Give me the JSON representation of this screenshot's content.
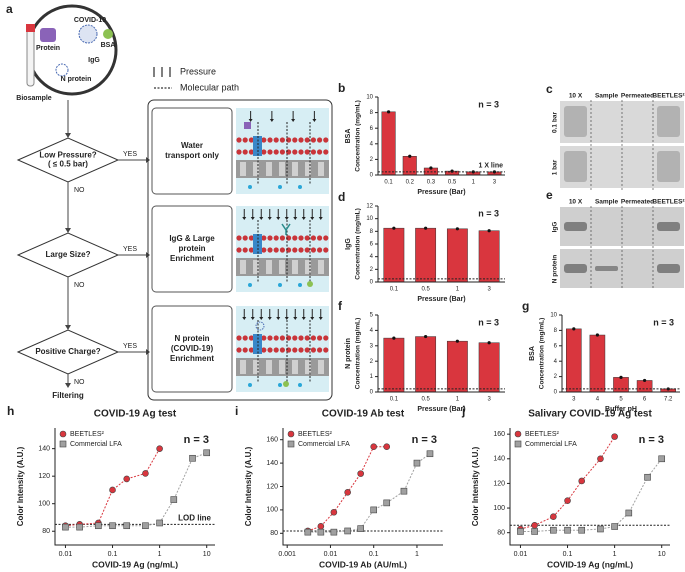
{
  "diagram": {
    "panel": "a",
    "biosample": "Biosample",
    "protein": "Protein",
    "covid": "COVID-19",
    "bsa": "BSA",
    "igg": "IgG",
    "nprotein": "N protein",
    "legend": {
      "pressure": "Pressure",
      "path": "Molecular path"
    },
    "decisions": [
      {
        "lines": [
          "Low Pressure?",
          "( ≤ 0.5 bar)"
        ],
        "yes": "YES",
        "no": "NO"
      },
      {
        "lines": [
          "Large Size?"
        ],
        "yes": "YES",
        "no": "NO"
      },
      {
        "lines": [
          "Positive Charge?"
        ],
        "yes": "YES",
        "no": "NO"
      }
    ],
    "outcomes": [
      {
        "lines": [
          "Water",
          "transport only"
        ]
      },
      {
        "lines": [
          "IgG & Large",
          "protein",
          "Enrichment"
        ]
      },
      {
        "lines": [
          "N protein",
          "(COVID-19)",
          "Enrichment"
        ]
      }
    ],
    "end": "Filtering"
  },
  "gels": [
    {
      "panel": "c",
      "columns": [
        "10 X",
        "Sample",
        "Permeated",
        "BEETLES²"
      ],
      "rows": [
        "0.1 bar",
        "1 bar"
      ]
    },
    {
      "panel": "e",
      "columns": [
        "10 X",
        "Sample",
        "Permeated",
        "BEETLES²"
      ],
      "rows": [
        "IgG",
        "N protein"
      ]
    }
  ],
  "chart_data": [
    {
      "panel": "b",
      "type": "bar",
      "side_label": "BSA",
      "ylabel": "Concentration (mg/mL)",
      "xlabel": "Pressure (Bar)",
      "annotation": "n = 3",
      "categories": [
        "0.1",
        "0.2",
        "0.3",
        "0.5",
        "1",
        "3"
      ],
      "values": [
        8.1,
        2.4,
        0.9,
        0.5,
        0.4,
        0.4
      ],
      "color": "#d9363e",
      "ylim": [
        0,
        10
      ],
      "yticks": [
        0,
        2,
        4,
        6,
        8,
        10
      ],
      "ref_line": 0.4,
      "ref_label": "1 X line"
    },
    {
      "panel": "d",
      "type": "bar",
      "side_label": "IgG",
      "ylabel": "Concentration (mg/mL)",
      "xlabel": "Pressure (Bar)",
      "annotation": "n = 3",
      "categories": [
        "0.1",
        "0.5",
        "1",
        "3"
      ],
      "values": [
        8.5,
        8.5,
        8.4,
        8.1
      ],
      "color": "#d9363e",
      "ylim": [
        0,
        12
      ],
      "yticks": [
        0,
        2,
        4,
        6,
        8,
        10,
        12
      ],
      "ref_line": 0.5
    },
    {
      "panel": "f",
      "type": "bar",
      "side_label": "N protein",
      "ylabel": "Concentration (mg/mL)",
      "xlabel": "Pressure (Bar)",
      "annotation": "n = 3",
      "categories": [
        "0.1",
        "0.5",
        "1",
        "3"
      ],
      "values": [
        3.5,
        3.6,
        3.3,
        3.2
      ],
      "color": "#d9363e",
      "ylim": [
        0,
        5
      ],
      "yticks": [
        0,
        1,
        2,
        3,
        4,
        5
      ],
      "ref_line": 0.2
    },
    {
      "panel": "g",
      "type": "bar",
      "side_label": "BSA",
      "ylabel": "Concentration (mg/mL)",
      "xlabel": "Buffer pH",
      "annotation": "n = 3",
      "categories": [
        "3",
        "4",
        "5",
        "6",
        "7.2"
      ],
      "values": [
        8.2,
        7.4,
        1.9,
        1.5,
        0.4
      ],
      "color": "#d9363e",
      "ylim": [
        0,
        10
      ],
      "yticks": [
        0,
        2,
        4,
        6,
        8,
        10
      ],
      "ref_line": 0.4
    },
    {
      "panel": "h",
      "type": "line",
      "title": "COVID-19 Ag test",
      "xlabel": "COVID-19 Ag (ng/mL)",
      "ylabel": "Color Intensity (A.U.)",
      "annotation": "n = 3",
      "xscale": "log",
      "xlim": [
        0.006,
        15
      ],
      "xticks": [
        0.01,
        0.1,
        1,
        10
      ],
      "ylim": [
        70,
        155
      ],
      "yticks": [
        80,
        100,
        120,
        140
      ],
      "ref_line": 85,
      "ref_label": "LOD line",
      "series": [
        {
          "name": "BEETLES²",
          "color": "#d9363e",
          "marker": "circle",
          "x": [
            0.01,
            0.02,
            0.05,
            0.1,
            0.2,
            0.5,
            1
          ],
          "values": [
            84,
            85,
            86,
            110,
            118,
            122,
            140
          ]
        },
        {
          "name": "Commercial LFA",
          "color": "#a0a0a0",
          "marker": "square",
          "x": [
            0.01,
            0.02,
            0.05,
            0.1,
            0.2,
            0.5,
            1,
            2,
            5,
            10
          ],
          "values": [
            83,
            83,
            84,
            84,
            84,
            84,
            86,
            103,
            133,
            137
          ]
        }
      ]
    },
    {
      "panel": "i",
      "type": "line",
      "title": "COVID-19 Ab test",
      "xlabel": "COVID-19 Ab (AU/mL)",
      "ylabel": "Color Intensity (A.U.)",
      "annotation": "n = 3",
      "xscale": "log",
      "xlim": [
        0.0008,
        4
      ],
      "xticks": [
        0.001,
        0.01,
        0.1,
        1
      ],
      "ylim": [
        70,
        170
      ],
      "yticks": [
        80,
        100,
        120,
        140,
        160
      ],
      "ref_line": 82,
      "series": [
        {
          "name": "BEETLES²",
          "color": "#d9363e",
          "marker": "circle",
          "x": [
            0.003,
            0.006,
            0.012,
            0.025,
            0.05,
            0.1,
            0.2
          ],
          "values": [
            82,
            86,
            98,
            115,
            131,
            154,
            154
          ]
        },
        {
          "name": "Commercial LFA",
          "color": "#a0a0a0",
          "marker": "square",
          "x": [
            0.003,
            0.006,
            0.012,
            0.025,
            0.05,
            0.1,
            0.2,
            0.5,
            1,
            2
          ],
          "values": [
            81,
            81,
            81,
            82,
            84,
            100,
            106,
            116,
            140,
            148
          ]
        }
      ]
    },
    {
      "panel": "j",
      "type": "line",
      "title": "Salivary COVID-19 Ag test",
      "xlabel": "COVID-19 Ag (ng/mL)",
      "ylabel": "Color Intensity (A.U.)",
      "annotation": "n = 3",
      "xscale": "log",
      "xlim": [
        0.006,
        15
      ],
      "xticks": [
        0.01,
        0.1,
        1,
        10
      ],
      "ylim": [
        70,
        165
      ],
      "yticks": [
        80,
        100,
        120,
        140,
        160
      ],
      "ref_line": 86,
      "series": [
        {
          "name": "BEETLES²",
          "color": "#d9363e",
          "marker": "circle",
          "x": [
            0.01,
            0.02,
            0.05,
            0.1,
            0.2,
            0.5,
            1
          ],
          "values": [
            83,
            86,
            93,
            106,
            122,
            140,
            158
          ]
        },
        {
          "name": "Commercial LFA",
          "color": "#a0a0a0",
          "marker": "square",
          "x": [
            0.01,
            0.02,
            0.05,
            0.1,
            0.2,
            0.5,
            1,
            2,
            5,
            10
          ],
          "values": [
            81,
            81,
            82,
            82,
            82,
            83,
            85,
            96,
            125,
            140
          ]
        }
      ]
    }
  ]
}
